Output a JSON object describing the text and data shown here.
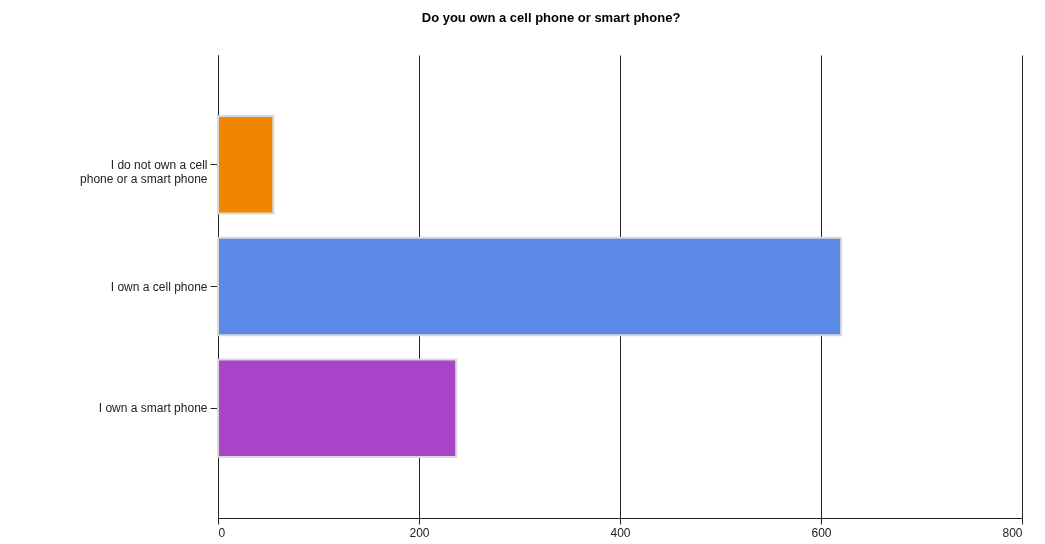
{
  "chart_data": {
    "type": "bar",
    "orientation": "horizontal",
    "title": "Do you own a cell phone or smart phone?",
    "categories": [
      "I do not own a cell phone or a smart phone",
      "I own a cell phone",
      "I own a smart phone"
    ],
    "values": [
      55,
      620,
      237
    ],
    "colors": [
      "#f08600",
      "#5a8ae6",
      "#a844c8"
    ],
    "xlim": [
      0,
      800
    ],
    "xticks": [
      0,
      200,
      400,
      600,
      800
    ],
    "grid": "x"
  }
}
